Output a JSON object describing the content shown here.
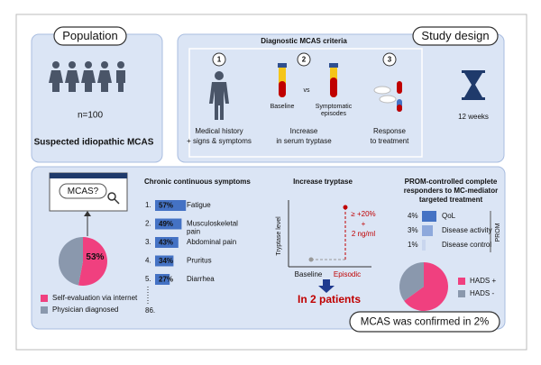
{
  "population": {
    "title": "Population",
    "n": "n=100",
    "label": "Suspected idiopathic MCAS"
  },
  "study_design": {
    "title": "Study design",
    "criteria_title": "Diagnostic MCAS criteria",
    "criteria": [
      {
        "number": "1",
        "caption": [
          "Medical history",
          "+ signs & symptoms"
        ]
      },
      {
        "number": "2",
        "sublabels": [
          "Baseline",
          "vs",
          "Symptomatic",
          "episodes"
        ],
        "caption": [
          "Increase",
          "in serum tryptase"
        ]
      },
      {
        "number": "3",
        "caption": [
          "Response",
          "to treatment"
        ]
      }
    ],
    "duration": "12 weeks"
  },
  "self_evaluation": {
    "search": "MCAS?",
    "slices": [
      {
        "name": "Self-evaluation via internet",
        "value": 53,
        "label": "53%",
        "color": "#f0407f"
      },
      {
        "name": "Physician diagnosed",
        "value": 47,
        "color": "#8a98ad"
      }
    ]
  },
  "symptoms": {
    "title": "Chronic continuous symptoms",
    "color": "#4472c4",
    "items": [
      {
        "rank": "1.",
        "value": 57,
        "label": "57%",
        "name": [
          "Fatigue"
        ]
      },
      {
        "rank": "2.",
        "value": 49,
        "label": "49%",
        "name": [
          "Musculoskeletal",
          "pain"
        ]
      },
      {
        "rank": "3.",
        "value": 43,
        "label": "43%",
        "name": [
          "Abdominal pain"
        ]
      },
      {
        "rank": "4.",
        "value": 34,
        "label": "34%",
        "name": [
          "Pruritus"
        ]
      },
      {
        "rank": "5.",
        "value": 27,
        "label": "27%",
        "name": [
          "Diarrhea"
        ]
      }
    ],
    "last": "86."
  },
  "tryptase": {
    "title": "Increase tryptase",
    "y_label": "Tryptase level",
    "x": [
      "Baseline",
      "Episodic"
    ],
    "annotation": [
      "≥ +20%",
      "+",
      "2 ng/ml"
    ],
    "result": "In 2 patients"
  },
  "prom": {
    "title": [
      "PROM-controlled complete",
      "responders to MC-mediator",
      "targeted treatment"
    ],
    "axis": "PROM",
    "items": [
      {
        "value": 4,
        "label": "4%",
        "name": "QoL",
        "color": "#4472c4"
      },
      {
        "value": 3,
        "label": "3%",
        "name": "Disease activity",
        "color": "#8ea9dc"
      },
      {
        "value": 1,
        "label": "1%",
        "name": "Disease control",
        "color": "#c9d6ee"
      }
    ],
    "slices": [
      {
        "name": "HADS +",
        "value": 65,
        "color": "#f0407f"
      },
      {
        "name": "HADS -",
        "value": 35,
        "color": "#8a98ad"
      }
    ]
  },
  "conclusion": "MCAS was confirmed in 2%"
}
